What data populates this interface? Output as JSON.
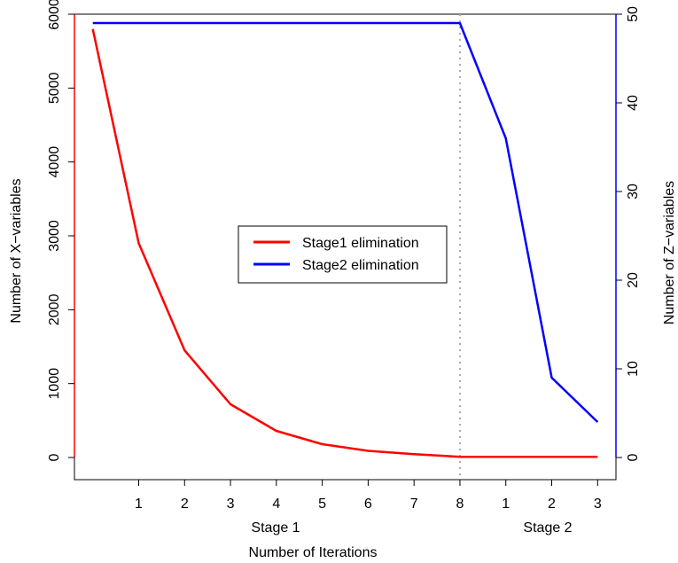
{
  "chart_data": {
    "type": "line",
    "xlabel": "Number of Iterations",
    "ylabel_left": "Number of X−variables",
    "ylabel_right": "Number of Z−variables",
    "x_tick_labels": [
      "1",
      "2",
      "3",
      "4",
      "5",
      "6",
      "7",
      "8",
      "1",
      "2",
      "3"
    ],
    "stage_labels": [
      "Stage 1",
      "Stage 2"
    ],
    "stage_divider_x": 8,
    "x_range": [
      -0.4,
      11.4
    ],
    "left_axis": {
      "ylim": [
        -300,
        6000
      ],
      "ticks": [
        0,
        1000,
        2000,
        3000,
        4000,
        5000,
        6000
      ],
      "color": "#ff0000"
    },
    "right_axis": {
      "ylim": [
        -2.5,
        50
      ],
      "ticks": [
        0,
        10,
        20,
        30,
        40,
        50
      ],
      "color": "#0000ff"
    },
    "series": [
      {
        "name": "Stage1 elimination",
        "axis": "left",
        "color": "#ff0000",
        "x": [
          0,
          1,
          2,
          3,
          4,
          5,
          6,
          7,
          8,
          9,
          10,
          11
        ],
        "y": [
          5800,
          2900,
          1450,
          720,
          360,
          180,
          90,
          45,
          10,
          10,
          10,
          10
        ]
      },
      {
        "name": "Stage2 elimination",
        "axis": "right",
        "color": "#0000ff",
        "x": [
          0,
          1,
          2,
          3,
          4,
          5,
          6,
          7,
          8,
          9,
          10,
          11
        ],
        "y": [
          49,
          49,
          49,
          49,
          49,
          49,
          49,
          49,
          49,
          36,
          9,
          4
        ]
      }
    ],
    "legend_position": "center",
    "grid": false
  }
}
